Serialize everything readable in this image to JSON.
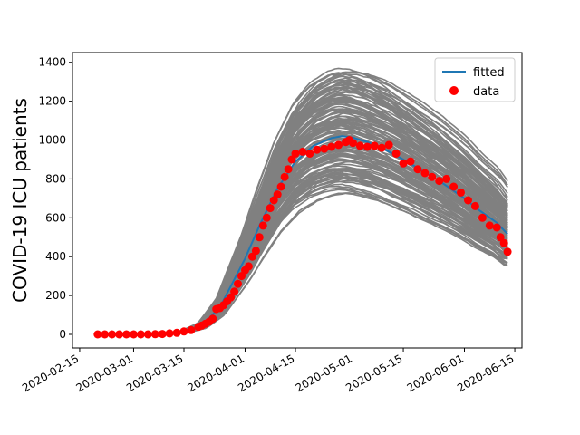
{
  "chart_data": {
    "type": "line",
    "title": "",
    "xlabel": "",
    "ylabel": "COVID-19 ICU patients",
    "xlim": [
      "2020-02-13",
      "2020-06-17"
    ],
    "ylim": [
      -70,
      1450
    ],
    "grid": false,
    "legend_placement": "top-right",
    "xticks": [
      "2020-02-15",
      "2020-03-01",
      "2020-03-15",
      "2020-04-01",
      "2020-04-15",
      "2020-05-01",
      "2020-05-15",
      "2020-06-01",
      "2020-06-15"
    ],
    "yticks": [
      0,
      200,
      400,
      600,
      800,
      1000,
      1200,
      1400
    ],
    "colors": {
      "fitted": "#1f77b4",
      "data": "#ff0000",
      "ensemble": "#808080"
    },
    "series": [
      {
        "name": "fitted",
        "kind": "line",
        "x": [
          "2020-02-20",
          "2020-03-01",
          "2020-03-10",
          "2020-03-15",
          "2020-03-20",
          "2020-03-25",
          "2020-04-01",
          "2020-04-05",
          "2020-04-10",
          "2020-04-15",
          "2020-04-20",
          "2020-04-25",
          "2020-04-28",
          "2020-05-01",
          "2020-05-05",
          "2020-05-10",
          "2020-05-15",
          "2020-05-20",
          "2020-05-25",
          "2020-06-01",
          "2020-06-05",
          "2020-06-10",
          "2020-06-13"
        ],
        "y": [
          0,
          0,
          2,
          12,
          45,
          140,
          390,
          560,
          750,
          890,
          970,
          1010,
          1020,
          1012,
          990,
          950,
          900,
          845,
          790,
          700,
          640,
          575,
          515
        ]
      },
      {
        "name": "data",
        "kind": "scatter",
        "x": [
          "2020-02-20",
          "2020-02-22",
          "2020-02-24",
          "2020-02-26",
          "2020-02-28",
          "2020-03-01",
          "2020-03-03",
          "2020-03-05",
          "2020-03-07",
          "2020-03-09",
          "2020-03-11",
          "2020-03-13",
          "2020-03-15",
          "2020-03-17",
          "2020-03-19",
          "2020-03-20",
          "2020-03-21",
          "2020-03-22",
          "2020-03-23",
          "2020-03-24",
          "2020-03-25",
          "2020-03-26",
          "2020-03-27",
          "2020-03-28",
          "2020-03-29",
          "2020-03-30",
          "2020-03-31",
          "2020-04-01",
          "2020-04-02",
          "2020-04-03",
          "2020-04-04",
          "2020-04-05",
          "2020-04-06",
          "2020-04-07",
          "2020-04-08",
          "2020-04-09",
          "2020-04-10",
          "2020-04-11",
          "2020-04-12",
          "2020-04-13",
          "2020-04-14",
          "2020-04-15",
          "2020-04-17",
          "2020-04-19",
          "2020-04-21",
          "2020-04-23",
          "2020-04-25",
          "2020-04-27",
          "2020-04-29",
          "2020-04-30",
          "2020-05-01",
          "2020-05-03",
          "2020-05-05",
          "2020-05-07",
          "2020-05-09",
          "2020-05-11",
          "2020-05-13",
          "2020-05-15",
          "2020-05-17",
          "2020-05-19",
          "2020-05-21",
          "2020-05-23",
          "2020-05-25",
          "2020-05-27",
          "2020-05-29",
          "2020-05-31",
          "2020-06-02",
          "2020-06-04",
          "2020-06-06",
          "2020-06-08",
          "2020-06-10",
          "2020-06-11",
          "2020-06-12",
          "2020-06-13"
        ],
        "y": [
          0,
          0,
          0,
          0,
          0,
          0,
          0,
          0,
          1,
          2,
          5,
          8,
          15,
          22,
          38,
          45,
          55,
          65,
          80,
          130,
          135,
          150,
          170,
          190,
          220,
          260,
          300,
          330,
          350,
          400,
          430,
          500,
          560,
          600,
          650,
          690,
          720,
          760,
          810,
          850,
          900,
          930,
          940,
          930,
          950,
          955,
          965,
          975,
          990,
          1000,
          985,
          970,
          965,
          970,
          960,
          975,
          930,
          880,
          890,
          850,
          830,
          810,
          790,
          800,
          760,
          730,
          690,
          660,
          600,
          560,
          550,
          500,
          470,
          425
        ]
      }
    ]
  }
}
